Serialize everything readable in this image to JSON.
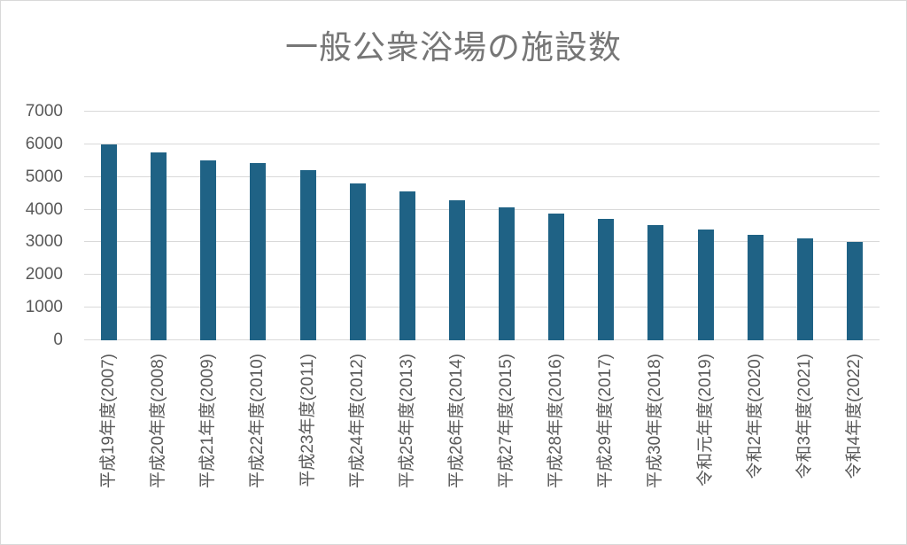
{
  "window": {
    "background": "#ffffff",
    "border_color": "#d9d9d9"
  },
  "chart_data": {
    "type": "bar",
    "title": "一般公衆浴場の施設数",
    "xlabel": "",
    "ylabel": "",
    "categories": [
      "平成19年度(2007)",
      "平成20年度(2008)",
      "平成21年度(2009)",
      "平成22年度(2010)",
      "平成23年度(2011)",
      "平成24年度(2012)",
      "平成25年度(2013)",
      "平成26年度(2014)",
      "平成27年度(2015)",
      "平成28年度(2016)",
      "平成29年度(2017)",
      "平成30年度(2018)",
      "令和元年度(2019)",
      "令和2年度(2020)",
      "令和3年度(2021)",
      "令和4年度(2022)"
    ],
    "values": [
      6010,
      5750,
      5500,
      5440,
      5200,
      4800,
      4550,
      4300,
      4070,
      3890,
      3720,
      3520,
      3390,
      3220,
      3130,
      3000
    ],
    "yticks": [
      0,
      1000,
      2000,
      3000,
      4000,
      5000,
      6000,
      7000
    ],
    "ylim": [
      0,
      7000
    ],
    "grid": true,
    "legend": false,
    "bar_color": "#1f6285",
    "gridline_color": "#d9d9d9",
    "axis_line_color": "#d9d9d9",
    "axis_label_color": "#595959",
    "title_color": "#767676"
  }
}
